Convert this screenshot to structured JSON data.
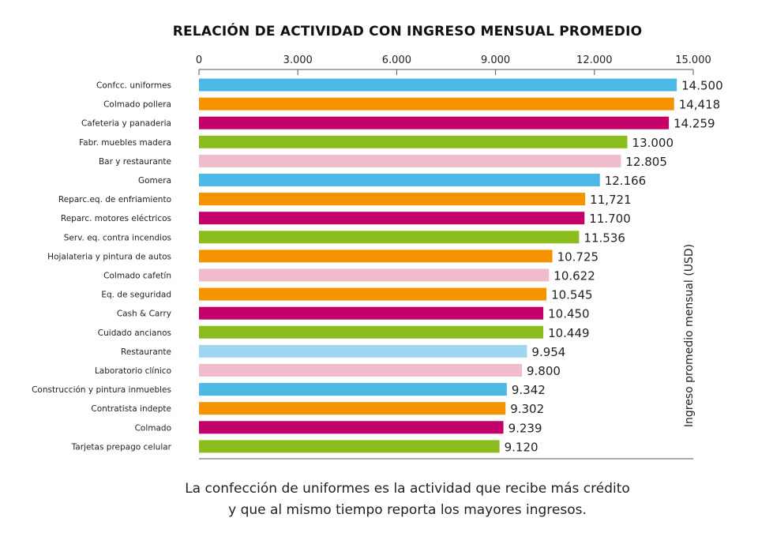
{
  "chart_data": {
    "type": "bar",
    "orientation": "horizontal",
    "title": "RELACIÓN DE ACTIVIDAD CON INGRESO MENSUAL PROMEDIO",
    "ylabel": "Ingreso promedio mensual (USD)",
    "xlim": [
      0,
      15000
    ],
    "ticks": [
      0,
      3000,
      6000,
      9000,
      12000,
      15000
    ],
    "tick_labels": [
      "0",
      "3.000",
      "6.000",
      "9.000",
      "12.000",
      "15.000"
    ],
    "grid": false,
    "categories": [
      "Confcc. uniformes",
      "Colmado pollera",
      "Cafeteria y panaderia",
      "Fabr. muebles madera",
      "Bar y restaurante",
      "Gomera",
      "Reparc.eq. de enfriamiento",
      "Reparc. motores eléctricos",
      "Serv. eq. contra incendios",
      "Hojalateria y pintura de autos",
      "Colmado cafetín",
      "Eq. de seguridad",
      "Cash & Carry",
      "Cuidado ancianos",
      "Restaurante",
      "Laboratorio clínico",
      "Construcción y pintura inmuebles",
      "Contratista indepte",
      "Colmado",
      "Tarjetas prepago celular"
    ],
    "values": [
      14500,
      14418,
      14259,
      13000,
      12805,
      12166,
      11721,
      11700,
      11536,
      10725,
      10622,
      10545,
      10450,
      10449,
      9954,
      9800,
      9342,
      9302,
      9239,
      9120
    ],
    "value_labels": [
      "14.500",
      "14,418",
      "14.259",
      "13.000",
      "12.805",
      "12.166",
      "11,721",
      "11.700",
      "11.536",
      "10.725",
      "10.622",
      "10.545",
      "10.450",
      "10.449",
      "9.954",
      "9.800",
      "9.342",
      "9.302",
      "9.239",
      "9.120"
    ],
    "colors": [
      "#4cb8e6",
      "#f49200",
      "#c4006b",
      "#8cbd1f",
      "#efbccb",
      "#4cb8e6",
      "#f49200",
      "#c4006b",
      "#8cbd1f",
      "#f49200",
      "#efbccb",
      "#f49200",
      "#c4006b",
      "#8cbd1f",
      "#9ed6ef",
      "#efbccb",
      "#4cb8e6",
      "#f49200",
      "#c4006b",
      "#8cbd1f"
    ]
  },
  "caption": {
    "line1": "La confección de uniformes es la actividad que recibe más crédito",
    "line2": "y que al mismo tiempo reporta los mayores ingresos."
  }
}
